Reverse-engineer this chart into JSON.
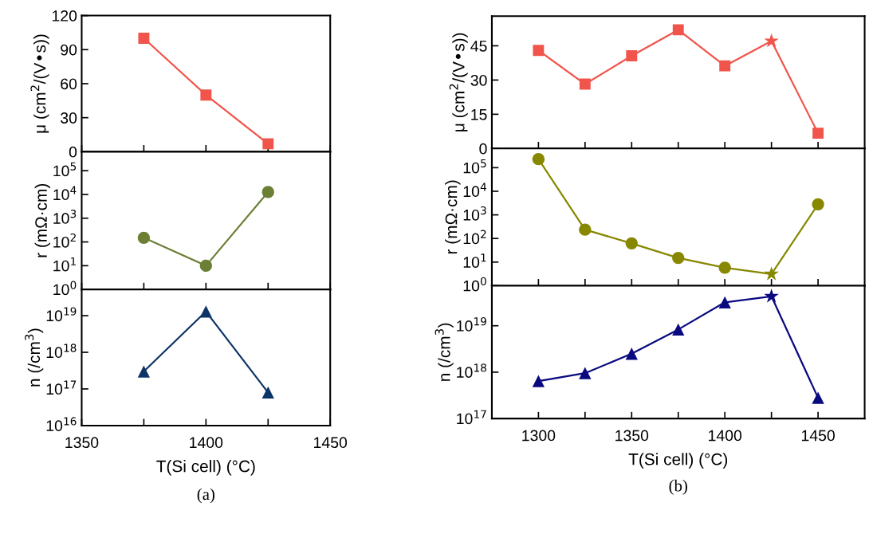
{
  "chart_data": [
    {
      "type": "line",
      "ylabel": "μ (cm$^{2}$/(V•s))",
      "x": [
        1375,
        1400,
        1425
      ],
      "xlim": [
        1350,
        1450
      ],
      "xticks": [
        1350,
        {
          "value": 1375,
          "label": null
        },
        1400,
        {
          "value": 1425,
          "label": null
        },
        1450
      ],
      "ylim": [
        0,
        120
      ],
      "yticks": [
        0,
        30,
        60,
        90,
        120
      ],
      "tick_labels": "y",
      "marker": "square",
      "line_style": "solid",
      "grid": false,
      "legend": false,
      "series": [
        {
          "color": "#f0544a",
          "values": [
            100,
            50,
            7
          ]
        }
      ]
    },
    {
      "type": "line",
      "ylabel": "r (mΩ·cm)",
      "log": true,
      "x": [
        1375,
        1400,
        1425
      ],
      "xlim": [
        1350,
        1450
      ],
      "xticks": [
        1350,
        {
          "value": 1375,
          "label": null
        },
        1400,
        {
          "value": 1425,
          "label": null
        },
        1450
      ],
      "ylim": [
        1,
        630000
      ],
      "yticks": [
        {
          "value": 1,
          "label": "10$^{0}$"
        },
        {
          "value": 10,
          "label": "10$^{1}$"
        },
        {
          "value": 100,
          "label": "10$^{2}$"
        },
        {
          "value": 1000,
          "label": "10$^{3}$"
        },
        {
          "value": 10000,
          "label": "10$^{4}$"
        },
        {
          "value": 100000,
          "label": "10$^{5}$"
        }
      ],
      "tick_labels": "y",
      "marker": "circle",
      "line_style": "solid",
      "grid": false,
      "legend": false,
      "series": [
        {
          "color": "#6b7f35",
          "values": [
            150,
            10,
            12600
          ]
        }
      ]
    },
    {
      "type": "line",
      "ylabel": "n (/cm$^{3}$)",
      "xlabel": "T(Si cell) (°C)",
      "log": true,
      "x": [
        1375,
        1400,
        1425
      ],
      "xlim": [
        1350,
        1450
      ],
      "xticks": [
        1350,
        {
          "value": 1375,
          "label": null
        },
        1400,
        {
          "value": 1425,
          "label": null
        },
        1450
      ],
      "ylim": [
        1e+16,
        5.2e+19
      ],
      "yticks": [
        {
          "value": 1e+16,
          "label": "10$^{16}$"
        },
        {
          "value": 1e+17,
          "label": "10$^{17}$"
        },
        {
          "value": 1e+18,
          "label": "10$^{18}$"
        },
        {
          "value": 1e+19,
          "label": "10$^{19}$"
        }
      ],
      "marker": "triangle",
      "line_style": "solid",
      "grid": false,
      "legend": false,
      "annotations": [
        "(a)"
      ],
      "series": [
        {
          "color": "#0d3466",
          "values": [
            3e+17,
            1.3e+19,
            8e+16
          ]
        }
      ]
    },
    {
      "type": "line",
      "ylabel": "μ (cm$^{2}$/(V•s))",
      "x": [
        1300,
        1325,
        1350,
        1375,
        1400,
        1425,
        1450
      ],
      "xlim": [
        1275,
        1475
      ],
      "xticks": [
        1300,
        {
          "value": 1325,
          "label": null
        },
        1350,
        {
          "value": 1375,
          "label": null
        },
        1400,
        {
          "value": 1425,
          "label": null
        },
        1450
      ],
      "ylim": [
        0,
        58
      ],
      "yticks": [
        0,
        15,
        30,
        45
      ],
      "tick_labels": "y",
      "line_style": "solid",
      "grid": false,
      "legend": false,
      "series": [
        {
          "type": "line",
          "marker": "none",
          "color": "#f0544a",
          "values": [
            43,
            28.2,
            40.6,
            52,
            36.2,
            47.1,
            6.7
          ]
        },
        {
          "type": "scatter",
          "marker": "square",
          "color": "#f0544a",
          "values": [
            43,
            28.2,
            40.6,
            52,
            36.2,
            null,
            6.7
          ]
        },
        {
          "type": "scatter",
          "marker": "star",
          "color": "#f0544a",
          "values": [
            null,
            null,
            null,
            null,
            null,
            47.1,
            null
          ]
        }
      ]
    },
    {
      "type": "line",
      "ylabel": "r (mΩ·cm)",
      "log": true,
      "x": [
        1300,
        1325,
        1350,
        1375,
        1400,
        1425,
        1450
      ],
      "xlim": [
        1275,
        1475
      ],
      "xticks": [
        1300,
        {
          "value": 1325,
          "label": null
        },
        1350,
        {
          "value": 1375,
          "label": null
        },
        1400,
        {
          "value": 1425,
          "label": null
        },
        1450
      ],
      "ylim": [
        1,
        650000
      ],
      "yticks": [
        {
          "value": 1,
          "label": "10$^{0}$"
        },
        {
          "value": 10,
          "label": "10$^{1}$"
        },
        {
          "value": 100,
          "label": "10$^{2}$"
        },
        {
          "value": 1000,
          "label": "10$^{3}$"
        },
        {
          "value": 10000,
          "label": "10$^{4}$"
        },
        {
          "value": 100000,
          "label": "10$^{5}$"
        }
      ],
      "tick_labels": "y",
      "line_style": "solid",
      "grid": false,
      "legend": false,
      "series": [
        {
          "type": "line",
          "marker": "none",
          "color": "#878700",
          "values": [
            230000,
            236,
            62,
            15,
            5.8,
            3.1,
            2800
          ]
        },
        {
          "type": "scatter",
          "marker": "circle",
          "color": "#878700",
          "values": [
            230000,
            236,
            62,
            15,
            5.8,
            null,
            2800
          ]
        },
        {
          "type": "scatter",
          "marker": "star",
          "color": "#878700",
          "values": [
            null,
            null,
            null,
            null,
            null,
            3.1,
            null
          ]
        }
      ]
    },
    {
      "type": "line",
      "ylabel": "n (/cm$^{3}$)",
      "xlabel": "T(Si cell) (°C)",
      "log": true,
      "x": [
        1300,
        1325,
        1350,
        1375,
        1400,
        1425,
        1450
      ],
      "xlim": [
        1275,
        1475
      ],
      "xticks": [
        1300,
        {
          "value": 1325,
          "label": null
        },
        1350,
        {
          "value": 1375,
          "label": null
        },
        1400,
        {
          "value": 1425,
          "label": null
        },
        1450
      ],
      "ylim": [
        1e+17,
        7.3e+19
      ],
      "yticks": [
        {
          "value": 1e+17,
          "label": "10$^{17}$"
        },
        {
          "value": 1e+18,
          "label": "10$^{18}$"
        },
        {
          "value": 1e+19,
          "label": "10$^{19}$"
        }
      ],
      "line_style": "solid",
      "grid": false,
      "legend": false,
      "annotations": [
        "(b)"
      ],
      "series": [
        {
          "type": "line",
          "marker": "none",
          "color": "#0a0a80",
          "values": [
            6.4e+17,
            9.5e+17,
            2.5e+18,
            8.3e+18,
            3.2e+19,
            4.3e+19,
            2.8e+17
          ]
        },
        {
          "type": "scatter",
          "marker": "triangle",
          "color": "#0a0a80",
          "values": [
            6.4e+17,
            9.5e+17,
            2.5e+18,
            8.3e+18,
            3.2e+19,
            null,
            2.8e+17
          ]
        },
        {
          "type": "scatter",
          "marker": "star",
          "color": "#0a0a80",
          "values": [
            null,
            null,
            null,
            null,
            null,
            4.3e+19,
            null
          ]
        }
      ]
    }
  ]
}
